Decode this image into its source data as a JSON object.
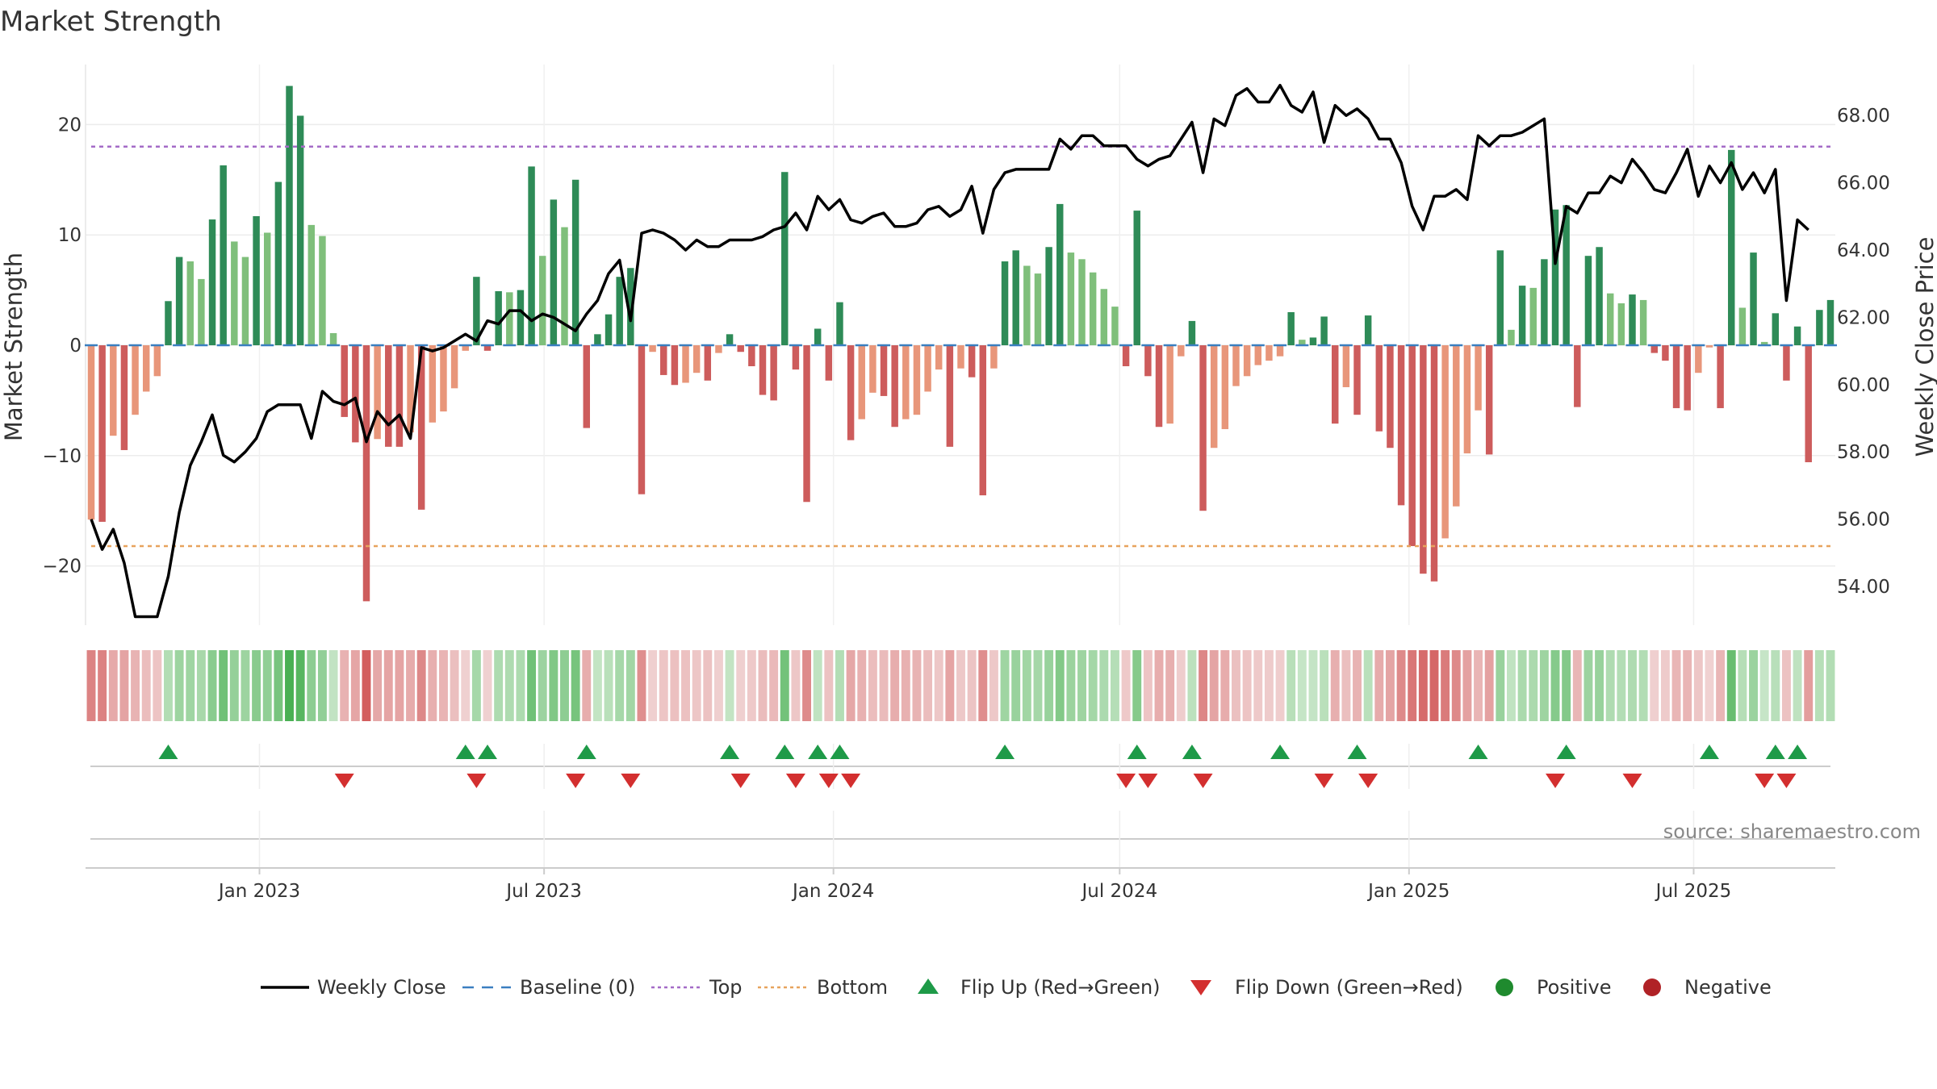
{
  "chart_data": {
    "type": "bar",
    "title": "Market Strength",
    "ylabel_left": "Market Strength",
    "ylabel_right": "Weekly Close Price",
    "ylim_left": [
      -25,
      25
    ],
    "ylim_right": [
      52.2,
      69.8
    ],
    "yticks_left": [
      -20,
      -10,
      0,
      10,
      20
    ],
    "yticks_left_labels": [
      "−20",
      "−10",
      "0",
      "10",
      "20"
    ],
    "yticks_right": [
      54,
      56,
      58,
      60,
      62,
      64,
      66,
      68
    ],
    "yticks_right_labels": [
      "54.00",
      "56.00",
      "58.00",
      "60.00",
      "62.00",
      "64.00",
      "66.00",
      "68.00"
    ],
    "x_start": "2022-09-16",
    "x_step_days": 7,
    "xticks": [
      {
        "date": "2023-01-01",
        "label": "Jan 2023"
      },
      {
        "date": "2023-07-01",
        "label": "Jul 2023"
      },
      {
        "date": "2024-01-01",
        "label": "Jan 2024"
      },
      {
        "date": "2024-07-01",
        "label": "Jul 2024"
      },
      {
        "date": "2025-01-01",
        "label": "Jan 2025"
      },
      {
        "date": "2025-07-01",
        "label": "Jul 2025"
      }
    ],
    "top_line": 18,
    "bottom_line": -18.2,
    "strength": [
      -15.8,
      -16,
      -8.2,
      -9.5,
      -6.3,
      -4.2,
      -2.8,
      4,
      8,
      7.6,
      6,
      11.4,
      16.3,
      9.4,
      8,
      11.7,
      10.2,
      14.8,
      23.5,
      20.8,
      10.9,
      9.9,
      1.1,
      -6.5,
      -8.8,
      -23.2,
      -8.5,
      -9.2,
      -9.2,
      -7.9,
      -14.9,
      -7,
      -6,
      -3.9,
      -0.5,
      6.2,
      -0.5,
      4.9,
      4.8,
      5,
      16.2,
      8.1,
      13.2,
      10.7,
      15,
      -7.5,
      1,
      2.8,
      6.2,
      7,
      -13.5,
      -0.6,
      -2.7,
      -3.6,
      -3.4,
      -2.5,
      -3.2,
      -0.7,
      1,
      -0.6,
      -1.9,
      -4.5,
      -5,
      15.7,
      -2.2,
      -14.2,
      1.5,
      -3.2,
      3.9,
      -8.6,
      -6.7,
      -4.3,
      -4.6,
      -7.4,
      -6.7,
      -6.3,
      -4.2,
      -2.2,
      -9.2,
      -2.1,
      -2.9,
      -13.6,
      -2.1,
      7.6,
      8.6,
      7.2,
      6.5,
      8.9,
      12.8,
      8.4,
      7.8,
      6.6,
      5.1,
      3.5,
      -1.9,
      12.2,
      -2.8,
      -7.4,
      -7.1,
      -1,
      2.2,
      -15,
      -9.3,
      -7.6,
      -3.7,
      -2.8,
      -1.8,
      -1.4,
      -1,
      3,
      0.5,
      0.7,
      2.6,
      -7.1,
      -3.8,
      -6.3,
      2.7,
      -7.8,
      -9.3,
      -14.5,
      -18.2,
      -20.7,
      -21.4,
      -17.5,
      -14.6,
      -9.8,
      -5.9,
      -9.9,
      8.6,
      1.4,
      5.4,
      5.2,
      7.8,
      12.3,
      12.7,
      -5.6,
      8.1,
      8.9,
      4.7,
      3.8,
      4.6,
      4.1,
      -0.7,
      -1.4,
      -5.7,
      -5.9,
      -2.5,
      -0.2,
      -5.7,
      17.7,
      3.4,
      8.4,
      0.3,
      2.9,
      -3.2,
      1.7,
      -10.6,
      3.2,
      4.1
    ],
    "weekly_close": [
      56,
      55.1,
      55.7,
      54.7,
      53.1,
      53.1,
      53.1,
      54.3,
      56.2,
      57.6,
      58.3,
      59.1,
      57.9,
      57.7,
      58,
      58.4,
      59.2,
      59.4,
      59.4,
      59.4,
      58.4,
      59.8,
      59.5,
      59.4,
      59.6,
      58.3,
      59.2,
      58.8,
      59.1,
      58.4,
      61.1,
      61,
      61.1,
      61.3,
      61.5,
      61.3,
      61.9,
      61.8,
      62.2,
      62.2,
      61.9,
      62.1,
      62,
      61.8,
      61.6,
      62.1,
      62.5,
      63.3,
      63.7,
      61.9,
      64.5,
      64.6,
      64.5,
      64.3,
      64,
      64.3,
      64.1,
      64.1,
      64.3,
      64.3,
      64.3,
      64.4,
      64.6,
      64.7,
      65.1,
      64.6,
      65.6,
      65.2,
      65.5,
      64.9,
      64.8,
      65,
      65.1,
      64.7,
      64.7,
      64.8,
      65.2,
      65.3,
      65,
      65.2,
      65.9,
      64.5,
      65.8,
      66.3,
      66.4,
      66.4,
      66.4,
      66.4,
      67.3,
      67,
      67.4,
      67.4,
      67.1,
      67.1,
      67.1,
      66.7,
      66.5,
      66.7,
      66.8,
      67.3,
      67.8,
      66.3,
      67.9,
      67.7,
      68.6,
      68.8,
      68.4,
      68.4,
      68.9,
      68.3,
      68.1,
      68.7,
      67.2,
      68.3,
      68,
      68.2,
      67.9,
      67.3,
      67.3,
      66.6,
      65.3,
      64.6,
      65.6,
      65.6,
      65.8,
      65.5,
      67.4,
      67.1,
      67.4,
      67.4,
      67.5,
      67.7,
      67.9,
      63.6,
      65.3,
      65.1,
      65.7,
      65.7,
      66.2,
      66,
      66.7,
      66.3,
      65.8,
      65.7,
      66.3,
      67,
      65.6,
      66.5,
      66,
      66.6,
      65.8,
      66.3,
      65.7,
      66.4,
      62.5,
      64.9,
      64.6
    ],
    "flip_up": [
      7,
      34,
      36,
      45,
      58,
      63,
      66,
      68,
      83,
      95,
      100,
      108,
      115,
      126,
      134,
      147,
      153,
      155
    ],
    "flip_down": [
      23,
      35,
      44,
      49,
      59,
      64,
      67,
      69,
      94,
      96,
      101,
      112,
      116,
      133,
      140,
      152,
      154
    ],
    "series": [
      {
        "name": "Weekly Close",
        "color": "#000000"
      },
      {
        "name": "Baseline (0)",
        "color": "#3a7fc0"
      },
      {
        "name": "Top",
        "color": "#a46bc7"
      },
      {
        "name": "Bottom",
        "color": "#e7a35d"
      },
      {
        "name": "Flip Up (Red→Green)",
        "color": "#1e9a48"
      },
      {
        "name": "Flip Down (Green→Red)",
        "color": "#d32f2f"
      },
      {
        "name": "Positive",
        "color": "#1f8a2e"
      },
      {
        "name": "Negative",
        "color": "#b02226"
      }
    ],
    "source": "source: sharemaestro.com"
  }
}
